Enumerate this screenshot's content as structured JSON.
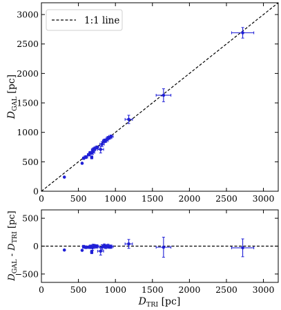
{
  "chart_data": [
    {
      "type": "scatter",
      "panel": "top",
      "xlabel": "",
      "ylabel": {
        "main": "D",
        "sub": "GAL",
        "unit": " [pc]"
      },
      "xlim": [
        0,
        3200
      ],
      "ylim": [
        0,
        3200
      ],
      "x_ticks": [
        0,
        500,
        1000,
        1500,
        2000,
        2500,
        3000
      ],
      "y_ticks": [
        0,
        500,
        1000,
        1500,
        2000,
        2500,
        3000
      ],
      "x_tick_labels": [
        "0",
        "500",
        "1000",
        "1500",
        "2000",
        "2500",
        "3000"
      ],
      "y_tick_labels": [
        "0",
        "500",
        "1000",
        "1500",
        "2000",
        "2500",
        "3000"
      ],
      "reference_line": {
        "name": "1:1 line",
        "style": "dashed",
        "color": "#000000",
        "from": [
          0,
          0
        ],
        "to": [
          3200,
          3200
        ]
      },
      "legend": {
        "position": "top-left",
        "entries": [
          "1:1 line"
        ]
      },
      "marker_color": "#1f1fd6",
      "series": [
        {
          "points": [
            {
              "x": 310,
              "y": 240,
              "xerr": 0,
              "yerr": 0
            },
            {
              "x": 550,
              "y": 475,
              "xerr": 0,
              "yerr": 0
            },
            {
              "x": 570,
              "y": 560,
              "xerr": 15,
              "yerr": 20
            },
            {
              "x": 600,
              "y": 580,
              "xerr": 25,
              "yerr": 25
            },
            {
              "x": 640,
              "y": 620,
              "xerr": 20,
              "yerr": 20
            },
            {
              "x": 660,
              "y": 650,
              "xerr": 20,
              "yerr": 25
            },
            {
              "x": 680,
              "y": 575,
              "xerr": 15,
              "yerr": 25
            },
            {
              "x": 690,
              "y": 660,
              "xerr": 30,
              "yerr": 35
            },
            {
              "x": 700,
              "y": 705,
              "xerr": 25,
              "yerr": 30
            },
            {
              "x": 720,
              "y": 720,
              "xerr": 20,
              "yerr": 30
            },
            {
              "x": 750,
              "y": 745,
              "xerr": 25,
              "yerr": 25
            },
            {
              "x": 800,
              "y": 710,
              "xerr": 40,
              "yerr": 60
            },
            {
              "x": 820,
              "y": 800,
              "xerr": 30,
              "yerr": 40
            },
            {
              "x": 850,
              "y": 855,
              "xerr": 25,
              "yerr": 30
            },
            {
              "x": 870,
              "y": 860,
              "xerr": 30,
              "yerr": 30
            },
            {
              "x": 900,
              "y": 900,
              "xerr": 25,
              "yerr": 30
            },
            {
              "x": 920,
              "y": 910,
              "xerr": 30,
              "yerr": 25
            },
            {
              "x": 940,
              "y": 930,
              "xerr": 30,
              "yerr": 25
            },
            {
              "x": 1180,
              "y": 1220,
              "xerr": 50,
              "yerr": 70
            },
            {
              "x": 1650,
              "y": 1630,
              "xerr": 100,
              "yerr": 110
            },
            {
              "x": 2720,
              "y": 2690,
              "xerr": 150,
              "yerr": 90
            }
          ]
        }
      ]
    },
    {
      "type": "scatter",
      "panel": "bottom",
      "xlabel": {
        "main": "D",
        "sub": "TRI",
        "unit": " [pc]"
      },
      "ylabel": {
        "a": "D",
        "a_sub": "GAL",
        "mid": " - D",
        "b_sub": "TRI",
        "unit": " [pc]"
      },
      "xlim": [
        0,
        3200
      ],
      "ylim": [
        -650,
        650
      ],
      "x_ticks": [
        0,
        500,
        1000,
        1500,
        2000,
        2500,
        3000
      ],
      "y_ticks": [
        -500,
        0,
        500
      ],
      "x_tick_labels": [
        "0",
        "500",
        "1000",
        "1500",
        "2000",
        "2500",
        "3000"
      ],
      "y_tick_labels": [
        "−500",
        "0",
        "500"
      ],
      "reference_line": {
        "style": "dashed",
        "color": "#000000",
        "y": 0
      },
      "marker_color": "#1f1fd6",
      "series": [
        {
          "points": [
            {
              "x": 310,
              "y": -70,
              "xerr": 0,
              "yerr": 0
            },
            {
              "x": 550,
              "y": -75,
              "xerr": 0,
              "yerr": 0
            },
            {
              "x": 570,
              "y": -10,
              "xerr": 15,
              "yerr": 25
            },
            {
              "x": 600,
              "y": -20,
              "xerr": 25,
              "yerr": 25
            },
            {
              "x": 640,
              "y": -20,
              "xerr": 20,
              "yerr": 20
            },
            {
              "x": 660,
              "y": -10,
              "xerr": 20,
              "yerr": 30
            },
            {
              "x": 680,
              "y": -105,
              "xerr": 15,
              "yerr": 30
            },
            {
              "x": 690,
              "y": -30,
              "xerr": 30,
              "yerr": 45
            },
            {
              "x": 700,
              "y": 5,
              "xerr": 25,
              "yerr": 30
            },
            {
              "x": 720,
              "y": 0,
              "xerr": 20,
              "yerr": 30
            },
            {
              "x": 750,
              "y": -5,
              "xerr": 25,
              "yerr": 30
            },
            {
              "x": 800,
              "y": -90,
              "xerr": 40,
              "yerr": 70
            },
            {
              "x": 820,
              "y": -20,
              "xerr": 30,
              "yerr": 45
            },
            {
              "x": 850,
              "y": 5,
              "xerr": 25,
              "yerr": 35
            },
            {
              "x": 870,
              "y": -10,
              "xerr": 30,
              "yerr": 35
            },
            {
              "x": 900,
              "y": 0,
              "xerr": 25,
              "yerr": 35
            },
            {
              "x": 920,
              "y": -10,
              "xerr": 30,
              "yerr": 30
            },
            {
              "x": 940,
              "y": -10,
              "xerr": 30,
              "yerr": 30
            },
            {
              "x": 1180,
              "y": 40,
              "xerr": 50,
              "yerr": 80
            },
            {
              "x": 1650,
              "y": -20,
              "xerr": 100,
              "yerr": 180
            },
            {
              "x": 2720,
              "y": -30,
              "xerr": 150,
              "yerr": 160
            }
          ]
        }
      ]
    }
  ]
}
